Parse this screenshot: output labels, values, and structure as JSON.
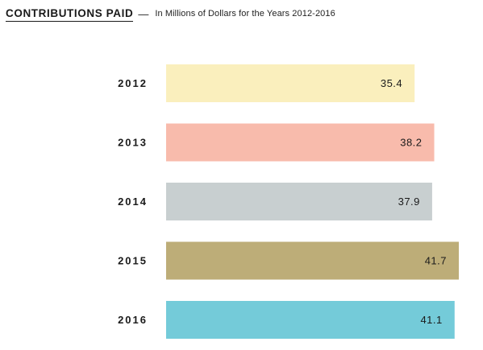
{
  "header": {
    "title": "CONTRIBUTIONS PAID",
    "separator": "—",
    "subtitle": "In Millions of Dollars for the Years 2012-2016"
  },
  "chart_data": {
    "type": "bar",
    "orientation": "horizontal",
    "title": "CONTRIBUTIONS PAID",
    "subtitle": "In Millions of Dollars for the Years 2012-2016",
    "xlabel": "",
    "ylabel": "",
    "categories": [
      "2012",
      "2013",
      "2014",
      "2015",
      "2016"
    ],
    "values": [
      35.4,
      38.2,
      37.9,
      41.7,
      41.1
    ],
    "value_labels": [
      "35.4",
      "38.2",
      "37.9",
      "41.7",
      "41.1"
    ],
    "colors": [
      "#faefbd",
      "#f8bbac",
      "#c8cfd0",
      "#bdad78",
      "#74cbd9"
    ],
    "xlim": [
      0,
      41.7
    ],
    "grid": false,
    "legend": "none"
  }
}
